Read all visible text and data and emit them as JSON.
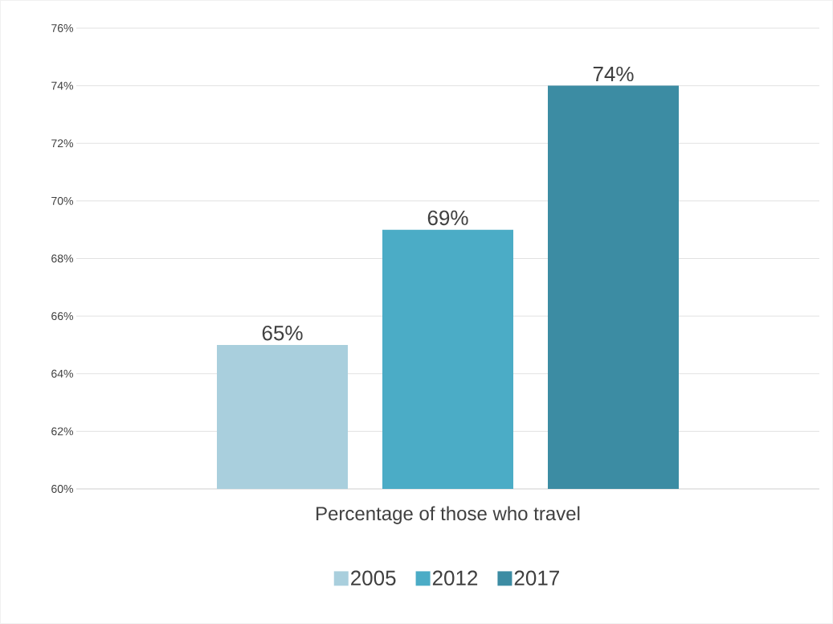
{
  "chart_data": {
    "type": "bar",
    "categories": [
      "Percentage of those who travel"
    ],
    "series": [
      {
        "name": "2005",
        "color": "#a9cfdd",
        "values": [
          65
        ],
        "value_labels": [
          "65%"
        ]
      },
      {
        "name": "2012",
        "color": "#4bacc6",
        "values": [
          69
        ],
        "value_labels": [
          "69%"
        ]
      },
      {
        "name": "2017",
        "color": "#3c8ca3",
        "values": [
          74
        ],
        "value_labels": [
          "74%"
        ]
      }
    ],
    "ylim": [
      60,
      76
    ],
    "yticks": [
      {
        "value": 60,
        "label": "60%"
      },
      {
        "value": 62,
        "label": "62%"
      },
      {
        "value": 64,
        "label": "64%"
      },
      {
        "value": 66,
        "label": "66%"
      },
      {
        "value": 68,
        "label": "68%"
      },
      {
        "value": 70,
        "label": "70%"
      },
      {
        "value": 72,
        "label": "72%"
      },
      {
        "value": 74,
        "label": "74%"
      },
      {
        "value": 76,
        "label": "76%"
      }
    ],
    "grid": "y",
    "legend": "bottom"
  }
}
